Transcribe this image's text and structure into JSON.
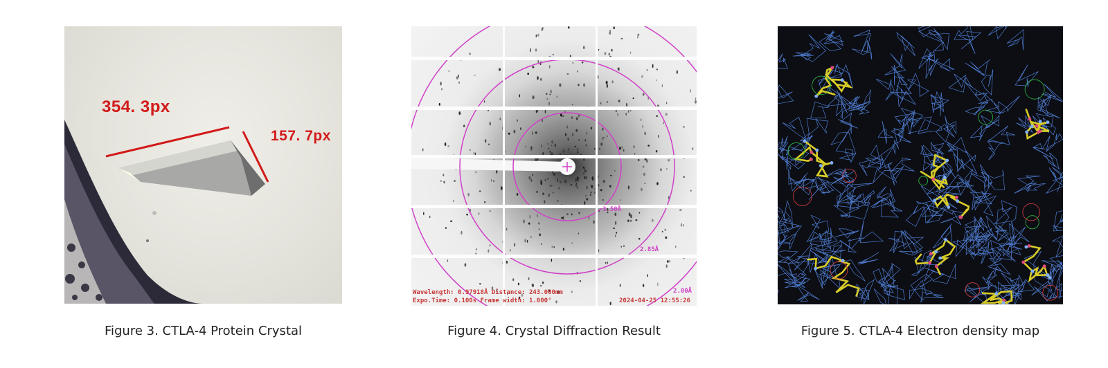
{
  "figures": [
    {
      "caption": "Figure 3. CTLA-4 Protein Crystal",
      "measurements": [
        "354. 3px",
        "157. 7px"
      ]
    },
    {
      "caption": "Figure 4. Crystal Diffraction Result",
      "ring_labels": [
        "3.50Å",
        "2.85Å",
        "2.00Å"
      ],
      "info": {
        "line1": "Wavelength: 0.97918Å Distance: 243.000mm",
        "line2": "Expo.Time: 0.100s Frame width: 1.000°",
        "timestamp": "2024-04-25 12:55:26"
      }
    },
    {
      "caption": "Figure 5. CTLA-4 Electron density map"
    }
  ],
  "colors": {
    "measure_red": "#d21a1a",
    "ring_magenta": "#d040c8",
    "mesh_blue": "#5a8ff0",
    "stick_yellow": "#d8cc28",
    "atom_red": "#e04040",
    "atom_green": "#30c040"
  }
}
